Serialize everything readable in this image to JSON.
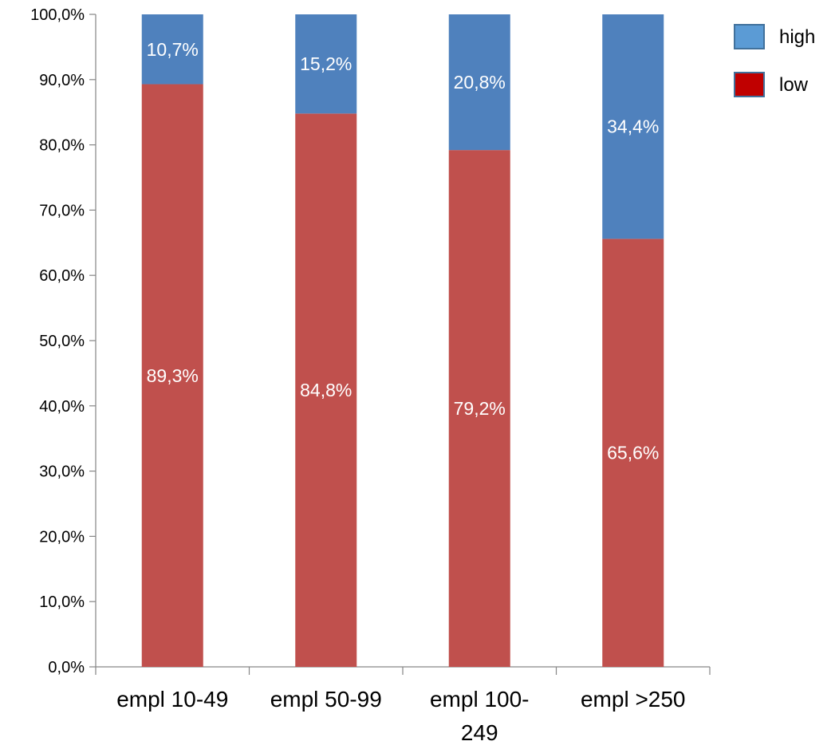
{
  "chart_data": {
    "type": "bar",
    "stacked": true,
    "percent_stacked": true,
    "categories": [
      [
        "empl 10-49"
      ],
      [
        "empl 50-99"
      ],
      [
        "empl 100-",
        "249"
      ],
      [
        "empl  >250"
      ]
    ],
    "series": [
      {
        "name": "low",
        "values": [
          89.3,
          84.8,
          79.2,
          65.6
        ],
        "labels": [
          "89,3%",
          "84,8%",
          "79,2%",
          "65,6%"
        ],
        "color": "#C0504D",
        "legend_color": "#C00000"
      },
      {
        "name": "high",
        "values": [
          10.7,
          15.2,
          20.8,
          34.4
        ],
        "labels": [
          "10,7%",
          "15,2%",
          "20,8%",
          "34,4%"
        ],
        "color": "#4F81BD",
        "legend_color": "#5B9BD5"
      }
    ],
    "y_ticks": [
      "0,0%",
      "10,0%",
      "20,0%",
      "30,0%",
      "40,0%",
      "50,0%",
      "60,0%",
      "70,0%",
      "80,0%",
      "90,0%",
      "100,0%"
    ],
    "ylim": [
      0,
      100
    ],
    "title": "",
    "xlabel": "",
    "ylabel": "",
    "grid": false,
    "legend": {
      "placement": "top-right",
      "order": [
        "high",
        "low"
      ]
    }
  }
}
